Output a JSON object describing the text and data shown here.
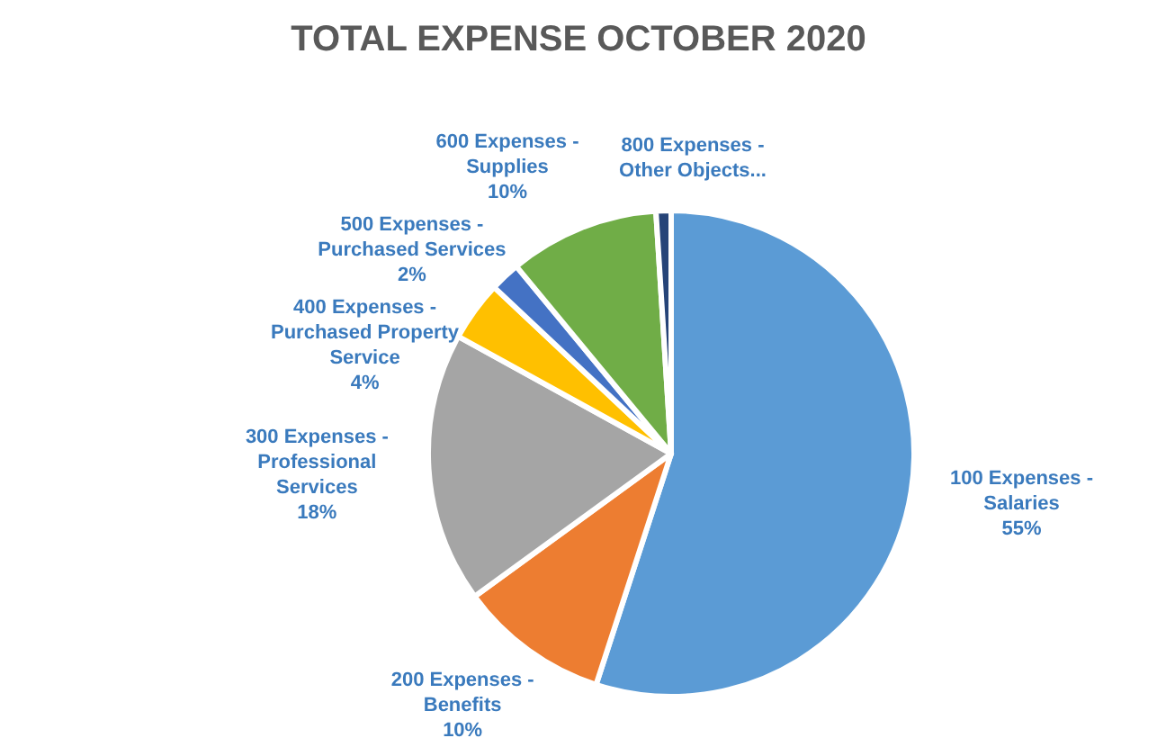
{
  "chart_data": {
    "type": "pie",
    "title": "TOTAL EXPENSE OCTOBER 2020",
    "categories": [
      "100 Expenses - Salaries",
      "200 Expenses - Benefits",
      "300 Expenses - Professional Services",
      "400 Expenses - Purchased Property Service",
      "500 Expenses - Purchased Services",
      "600 Expenses - Supplies",
      "800 Expenses - Other Objects..."
    ],
    "values": [
      55,
      10,
      18,
      4,
      2,
      10,
      1
    ],
    "value_labels": [
      "55%",
      "10%",
      "18%",
      "4%",
      "2%",
      "10%",
      null
    ],
    "colors": [
      "#5b9bd5",
      "#ed7d31",
      "#a5a5a5",
      "#ffc000",
      "#4472c4",
      "#70ad47",
      "#264478"
    ]
  }
}
